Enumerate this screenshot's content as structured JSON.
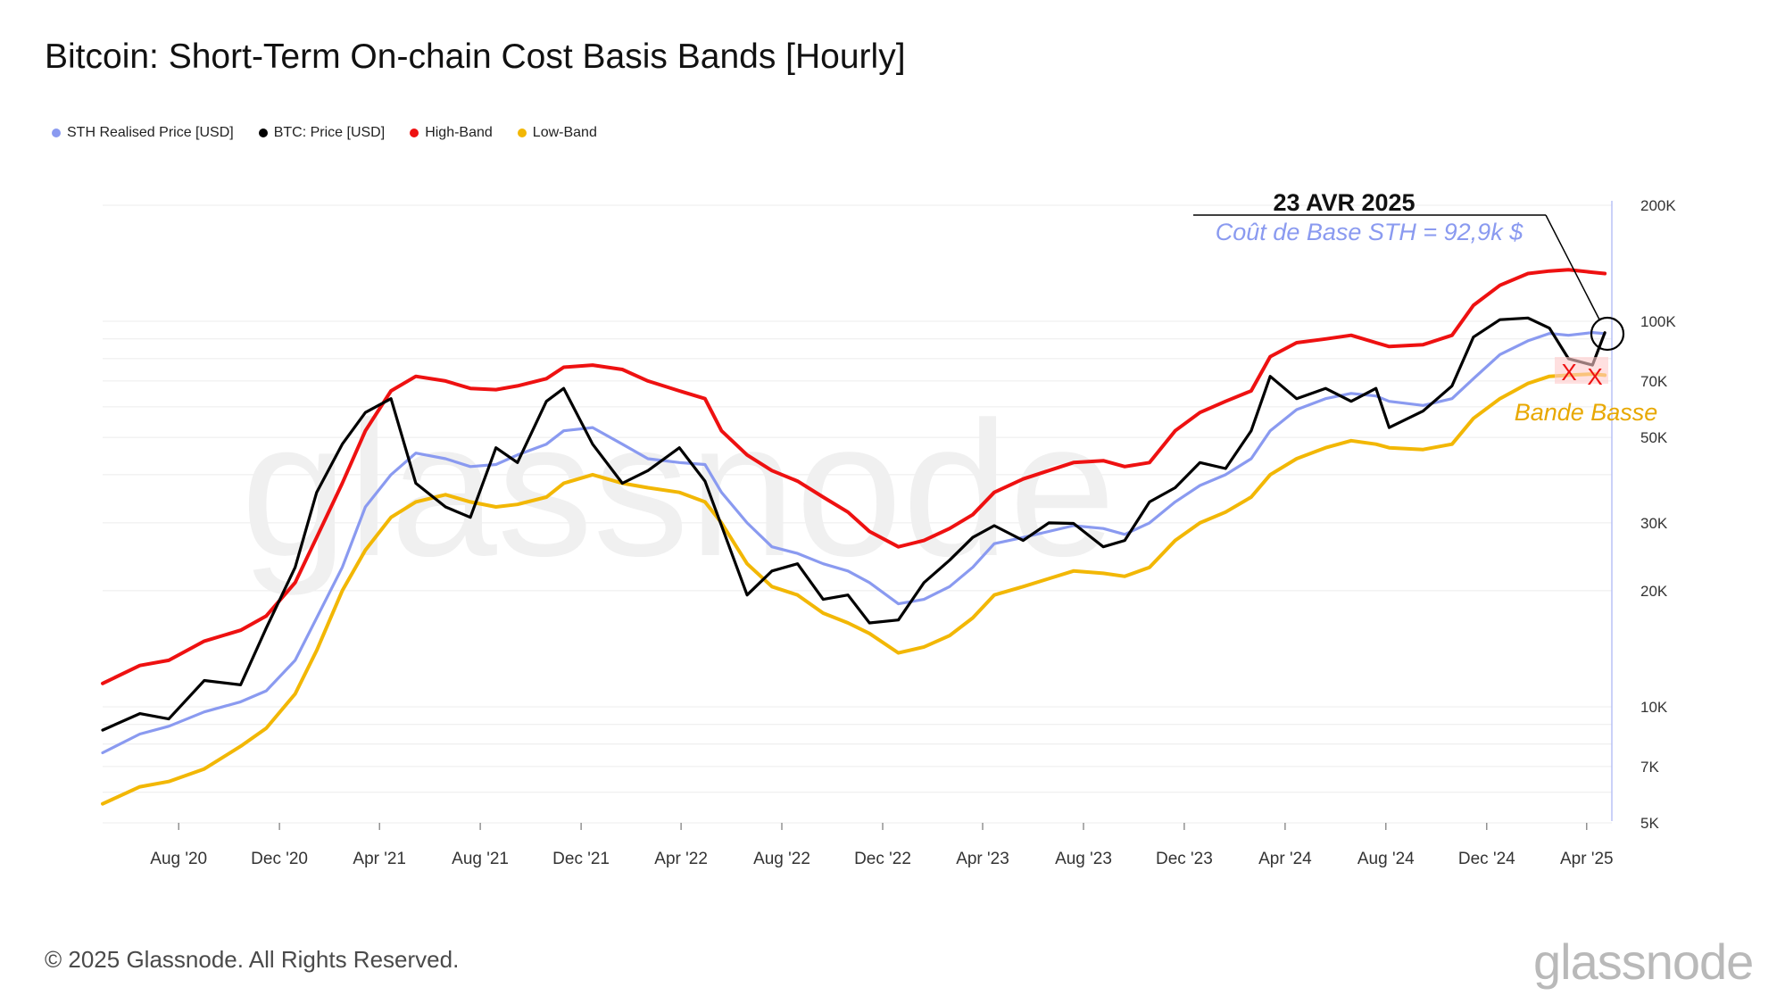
{
  "page": {
    "title": "Bitcoin: Short-Term On-chain Cost Basis Bands [Hourly]",
    "footer": "© 2025 Glassnode. All Rights Reserved.",
    "brand": "glassnode",
    "watermark": "glassnode"
  },
  "legend": [
    {
      "label": "STH Realised Price [USD]",
      "color": "#8a9af0"
    },
    {
      "label": "BTC: Price [USD]",
      "color": "#000000"
    },
    {
      "label": "High-Band",
      "color": "#ee1111"
    },
    {
      "label": "Low-Band",
      "color": "#f2b705"
    }
  ],
  "annotations": {
    "date": "23 AVR 2025",
    "cost_basis": "Coût de Base STH = 92,9k $",
    "low_band_label": "Bande Basse",
    "marker": "X"
  },
  "chart_data": {
    "type": "line",
    "title": "Bitcoin: Short-Term On-chain Cost Basis Bands [Hourly]",
    "x_axis": {
      "type": "date",
      "range": [
        "2020-05-01",
        "2025-04-25"
      ],
      "tick_labels": [
        "Aug '20",
        "Dec '20",
        "Apr '21",
        "Aug '21",
        "Dec '21",
        "Apr '22",
        "Aug '22",
        "Dec '22",
        "Apr '23",
        "Aug '23",
        "Dec '23",
        "Apr '24",
        "Aug '24",
        "Dec '24",
        "Apr '25"
      ],
      "tick_dates": [
        "2020-08-01",
        "2020-12-01",
        "2021-04-01",
        "2021-08-01",
        "2021-12-01",
        "2022-04-01",
        "2022-08-01",
        "2022-12-01",
        "2023-04-01",
        "2023-08-01",
        "2023-12-01",
        "2024-04-01",
        "2024-08-01",
        "2024-12-01",
        "2025-04-01"
      ]
    },
    "y_axis": {
      "scale": "log",
      "range": [
        5000,
        200000
      ],
      "tick_values": [
        5000,
        7000,
        10000,
        20000,
        30000,
        50000,
        70000,
        100000,
        200000
      ],
      "tick_labels": [
        "5K",
        "7K",
        "10K",
        "20K",
        "30K",
        "50K",
        "70K",
        "100K",
        "200K"
      ],
      "position": "right"
    },
    "grid": true,
    "legend_position": "top-left",
    "x": [
      "2020-05-01",
      "2020-06-15",
      "2020-07-20",
      "2020-09-01",
      "2020-10-15",
      "2020-11-15",
      "2020-12-20",
      "2021-01-15",
      "2021-02-15",
      "2021-03-15",
      "2021-04-15",
      "2021-05-15",
      "2021-06-20",
      "2021-07-20",
      "2021-08-20",
      "2021-09-15",
      "2021-10-20",
      "2021-11-10",
      "2021-12-15",
      "2022-01-20",
      "2022-02-20",
      "2022-03-30",
      "2022-04-30",
      "2022-05-20",
      "2022-06-20",
      "2022-07-20",
      "2022-08-20",
      "2022-09-20",
      "2022-10-20",
      "2022-11-15",
      "2022-12-20",
      "2023-01-20",
      "2023-02-20",
      "2023-03-20",
      "2023-04-15",
      "2023-05-20",
      "2023-06-20",
      "2023-07-20",
      "2023-08-25",
      "2023-09-20",
      "2023-10-20",
      "2023-11-20",
      "2023-12-20",
      "2024-01-20",
      "2024-02-20",
      "2024-03-14",
      "2024-04-15",
      "2024-05-20",
      "2024-06-20",
      "2024-07-20",
      "2024-08-05",
      "2024-09-15",
      "2024-10-20",
      "2024-11-15",
      "2024-12-17",
      "2025-01-20",
      "2025-02-15",
      "2025-03-10",
      "2025-04-08",
      "2025-04-23"
    ],
    "series": [
      {
        "name": "STH Realised Price [USD]",
        "color": "#8a9af0",
        "values": [
          7600,
          8500,
          8900,
          9700,
          10300,
          11000,
          13200,
          17000,
          23000,
          33000,
          40000,
          45500,
          44000,
          42000,
          42500,
          45000,
          48000,
          52000,
          53000,
          48000,
          44000,
          43000,
          42500,
          36000,
          30000,
          26000,
          25000,
          23500,
          22500,
          21000,
          18500,
          19000,
          20500,
          23000,
          26500,
          27500,
          28500,
          29500,
          29000,
          28000,
          30000,
          34000,
          37500,
          40000,
          44000,
          52000,
          59000,
          63000,
          65000,
          64000,
          62000,
          60500,
          63000,
          71000,
          82000,
          89000,
          93000,
          92000,
          93500,
          92900
        ]
      },
      {
        "name": "BTC: Price [USD]",
        "color": "#000000",
        "values": [
          8700,
          9600,
          9300,
          11700,
          11400,
          16000,
          23000,
          36000,
          48000,
          58000,
          63000,
          38000,
          33000,
          31000,
          47000,
          43000,
          62000,
          67000,
          48000,
          38000,
          41000,
          47000,
          38500,
          29500,
          19500,
          22500,
          23500,
          19000,
          19500,
          16500,
          16800,
          21000,
          24000,
          27500,
          29500,
          27000,
          30000,
          29900,
          26000,
          27000,
          34000,
          37000,
          43000,
          41500,
          52000,
          72000,
          63000,
          67000,
          62000,
          67000,
          53000,
          58500,
          68000,
          91000,
          101000,
          102000,
          96000,
          80000,
          77000,
          93400
        ]
      },
      {
        "name": "High-Band",
        "color": "#ee1111",
        "values": [
          11500,
          12800,
          13200,
          14800,
          15800,
          17200,
          21000,
          27500,
          38000,
          52000,
          66000,
          72000,
          70000,
          67000,
          66500,
          68000,
          71000,
          76000,
          77000,
          75000,
          70000,
          66000,
          63000,
          52000,
          45000,
          41000,
          38500,
          35000,
          32000,
          28500,
          26000,
          27000,
          29000,
          31500,
          36000,
          39000,
          41000,
          43000,
          43500,
          42000,
          43000,
          52000,
          58000,
          62000,
          66000,
          81000,
          88000,
          90000,
          92000,
          88000,
          86000,
          87000,
          92000,
          110000,
          124000,
          133000,
          135000,
          136000,
          134000,
          133000
        ]
      },
      {
        "name": "Low-Band",
        "color": "#f2b705",
        "values": [
          5600,
          6200,
          6400,
          6900,
          7900,
          8800,
          10800,
          14000,
          20000,
          25500,
          31000,
          34000,
          35500,
          34000,
          33000,
          33500,
          35000,
          38000,
          40000,
          38000,
          37000,
          36000,
          34000,
          30000,
          23500,
          20500,
          19500,
          17500,
          16500,
          15500,
          13800,
          14300,
          15300,
          17000,
          19500,
          20500,
          21500,
          22500,
          22200,
          21800,
          23000,
          27000,
          30000,
          32000,
          35000,
          40000,
          44000,
          47000,
          49000,
          48000,
          47000,
          46500,
          48000,
          56000,
          63000,
          69000,
          72000,
          72500,
          73000,
          72500
        ]
      }
    ]
  }
}
